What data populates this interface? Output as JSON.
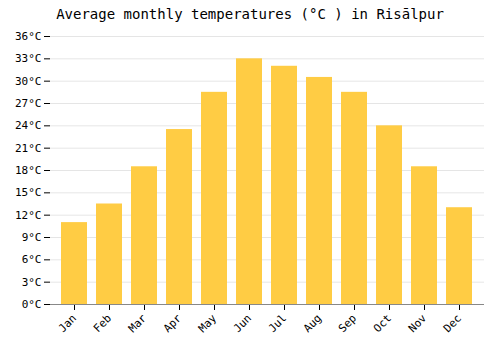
{
  "chart_data": {
    "type": "bar",
    "title": "Average monthly temperatures (°C ) in Risālpur",
    "categories": [
      "Jan",
      "Feb",
      "Mar",
      "Apr",
      "May",
      "Jun",
      "Jul",
      "Aug",
      "Sep",
      "Oct",
      "Nov",
      "Dec"
    ],
    "values": [
      11,
      13.5,
      18.5,
      23.5,
      28.5,
      33.0,
      32.0,
      30.5,
      28.5,
      24,
      18.5,
      13
    ],
    "color": "#FFCC44",
    "ylim": [
      0,
      36
    ],
    "yticks": [
      {
        "value": 0,
        "label": "0°C"
      },
      {
        "value": 3,
        "label": "3°C"
      },
      {
        "value": 6,
        "label": "6°C"
      },
      {
        "value": 9,
        "label": "9°C"
      },
      {
        "value": 12,
        "label": "12°C"
      },
      {
        "value": 15,
        "label": "15°C"
      },
      {
        "value": 18,
        "label": "18°C"
      },
      {
        "value": 21,
        "label": "21°C"
      },
      {
        "value": 24,
        "label": "24°C"
      },
      {
        "value": 27,
        "label": "27°C"
      },
      {
        "value": 30,
        "label": "30°C"
      },
      {
        "value": 33,
        "label": "33°C"
      },
      {
        "value": 36,
        "label": "36°C"
      }
    ],
    "grid": true
  }
}
